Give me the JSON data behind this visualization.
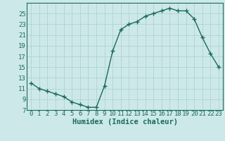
{
  "x": [
    0,
    1,
    2,
    3,
    4,
    5,
    6,
    7,
    8,
    9,
    10,
    11,
    12,
    13,
    14,
    15,
    16,
    17,
    18,
    19,
    20,
    21,
    22,
    23
  ],
  "y": [
    12,
    11,
    10.5,
    10,
    9.5,
    8.5,
    8,
    7.5,
    7.5,
    11.5,
    18,
    22,
    23,
    23.5,
    24.5,
    25,
    25.5,
    26,
    25.5,
    25.5,
    24,
    20.5,
    17.5,
    15
  ],
  "line_color": "#1a6b5a",
  "marker": "+",
  "marker_size": 4,
  "bg_color": "#cce8e8",
  "grid_color": "#aacfcf",
  "xlabel": "Humidex (Indice chaleur)",
  "xlim": [
    -0.5,
    23.5
  ],
  "ylim": [
    7,
    27
  ],
  "yticks": [
    7,
    9,
    11,
    13,
    15,
    17,
    19,
    21,
    23,
    25
  ],
  "xticks": [
    0,
    1,
    2,
    3,
    4,
    5,
    6,
    7,
    8,
    9,
    10,
    11,
    12,
    13,
    14,
    15,
    16,
    17,
    18,
    19,
    20,
    21,
    22,
    23
  ],
  "tick_label_size": 6.5,
  "xlabel_size": 7.5,
  "line_width": 1.0
}
